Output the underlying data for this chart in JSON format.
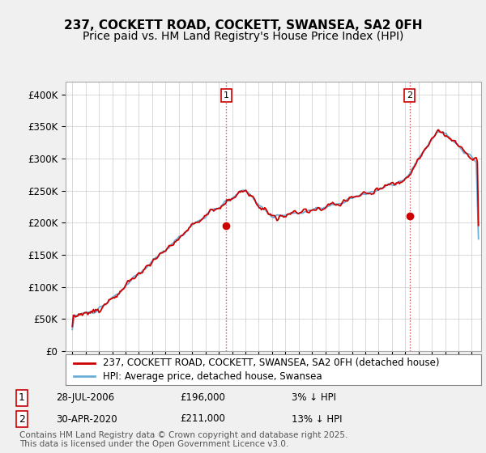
{
  "title": "237, COCKETT ROAD, COCKETT, SWANSEA, SA2 0FH",
  "subtitle": "Price paid vs. HM Land Registry's House Price Index (HPI)",
  "ylabel_ticks": [
    "£0",
    "£50K",
    "£100K",
    "£150K",
    "£200K",
    "£250K",
    "£300K",
    "£350K",
    "£400K"
  ],
  "ytick_values": [
    0,
    50000,
    100000,
    150000,
    200000,
    250000,
    300000,
    350000,
    400000
  ],
  "ylim": [
    0,
    420000
  ],
  "xlim_start": 1994.5,
  "xlim_end": 2025.7,
  "hpi_color": "#6baed6",
  "property_color": "#cc0000",
  "background_color": "#f0f0f0",
  "plot_bg_color": "#ffffff",
  "legend_entry1": "237, COCKETT ROAD, COCKETT, SWANSEA, SA2 0FH (detached house)",
  "legend_entry2": "HPI: Average price, detached house, Swansea",
  "sale1_label": "1",
  "sale1_date": "28-JUL-2006",
  "sale1_price": 196000,
  "sale1_year": 2006.55,
  "sale1_pct": "3% ↓ HPI",
  "sale2_label": "2",
  "sale2_date": "30-APR-2020",
  "sale2_price": 211000,
  "sale2_year": 2020.33,
  "sale2_pct": "13% ↓ HPI",
  "footnote": "Contains HM Land Registry data © Crown copyright and database right 2025.\nThis data is licensed under the Open Government Licence v3.0.",
  "grid_color": "#cccccc",
  "marker_vline_color": "#cc0000",
  "title_fontsize": 11,
  "subtitle_fontsize": 10,
  "tick_fontsize": 8.5,
  "legend_fontsize": 8.5,
  "footnote_fontsize": 7.5,
  "table_fontsize": 8.5
}
